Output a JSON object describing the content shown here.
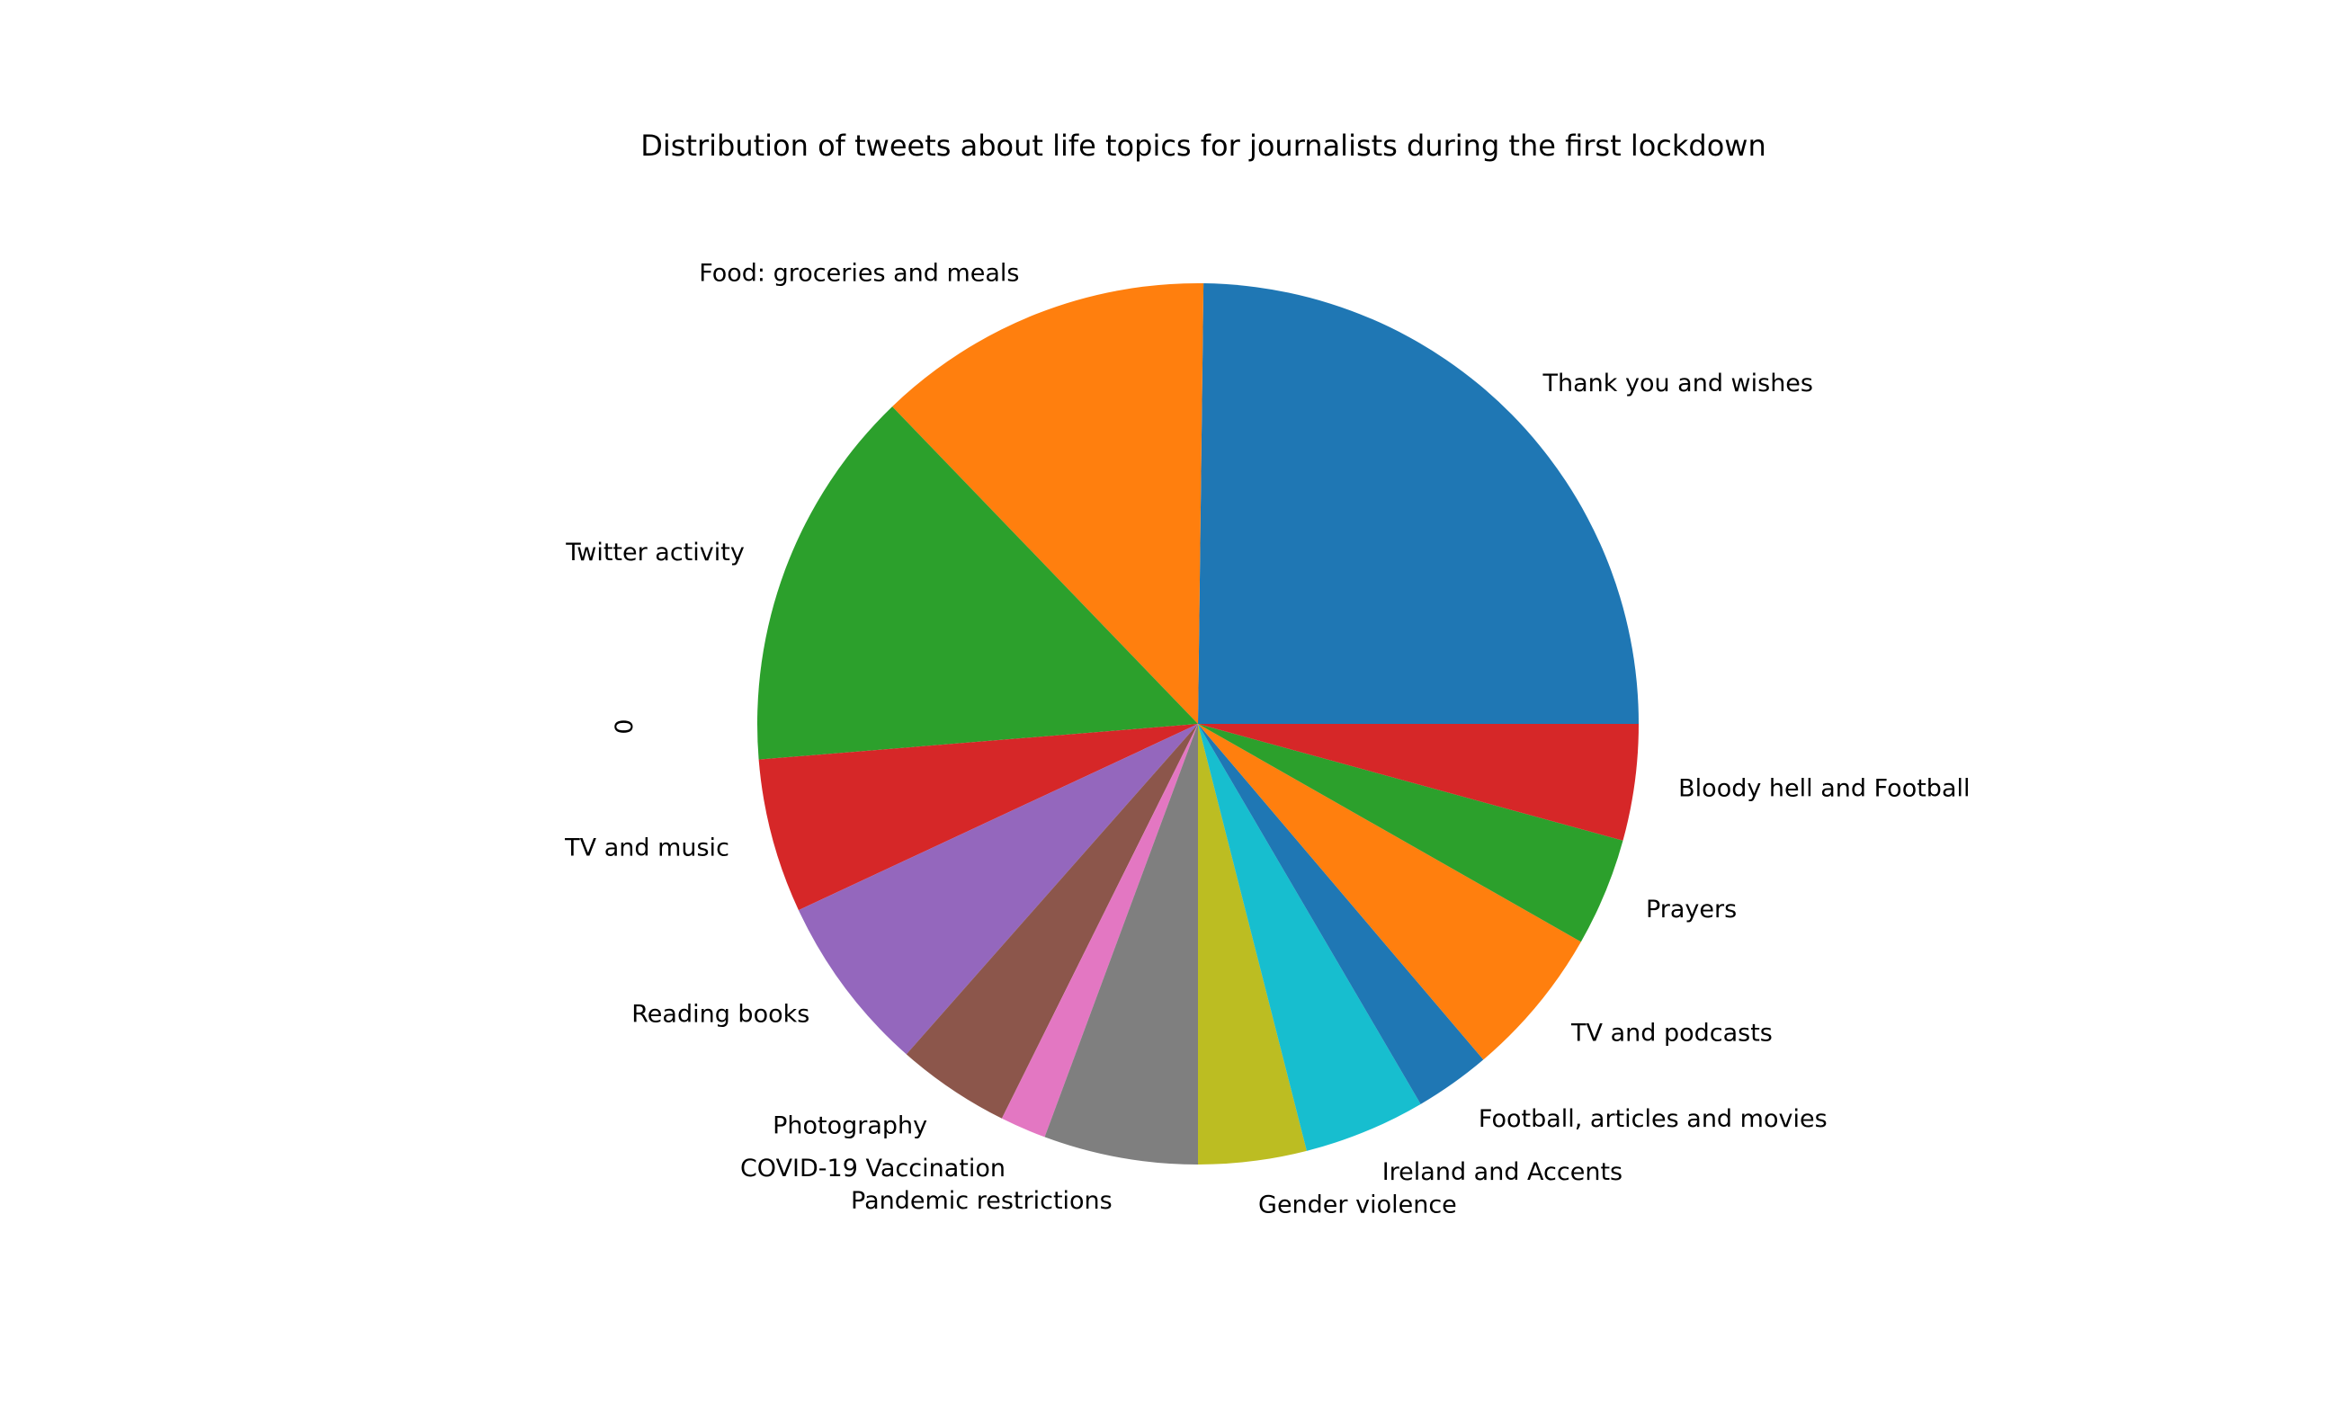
{
  "chart_data": {
    "type": "pie",
    "title": "Distribution of tweets about life topics for journalists during the first lockdown",
    "ylabel": "0",
    "start_angle_deg": 0,
    "direction": "counterclockwise",
    "slices": [
      {
        "label": "Thank you and wishes",
        "value": 25.0,
        "color": "#1f77b4"
      },
      {
        "label": "Food: groceries and meals",
        "value": 12.5,
        "color": "#ff7f0e"
      },
      {
        "label": "Twitter activity",
        "value": 14.2,
        "color": "#2ca02c"
      },
      {
        "label": "TV and music",
        "value": 5.7,
        "color": "#d62728"
      },
      {
        "label": "Reading books",
        "value": 6.6,
        "color": "#9467bd"
      },
      {
        "label": "Photography",
        "value": 4.2,
        "color": "#8c564b"
      },
      {
        "label": "COVID-19 Vaccination",
        "value": 1.7,
        "color": "#e377c2"
      },
      {
        "label": "Pandemic restrictions",
        "value": 5.7,
        "color": "#7f7f7f"
      },
      {
        "label": "Gender violence",
        "value": 4.0,
        "color": "#bcbd22"
      },
      {
        "label": "Ireland and Accents",
        "value": 4.5,
        "color": "#17becf"
      },
      {
        "label": "Football, articles and movies",
        "value": 2.8,
        "color": "#1f77b4"
      },
      {
        "label": "TV and podcasts",
        "value": 5.6,
        "color": "#ff7f0e"
      },
      {
        "label": "Prayers",
        "value": 4.0,
        "color": "#2ca02c"
      },
      {
        "label": "Bloody hell and Football",
        "value": 4.3,
        "color": "#d62728"
      }
    ]
  }
}
